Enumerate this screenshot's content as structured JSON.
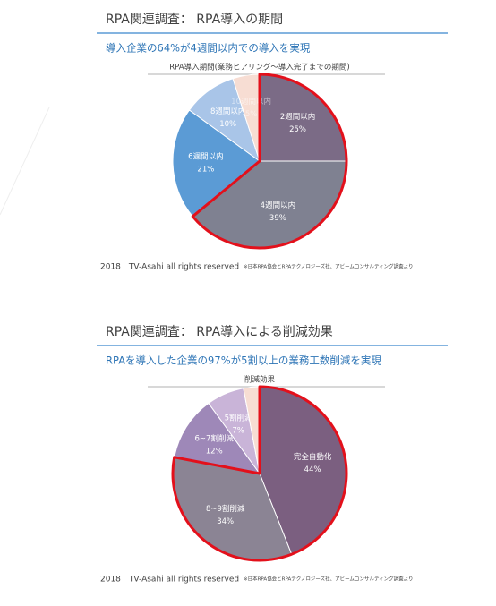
{
  "chart_data": [
    {
      "type": "pie",
      "title": "RPA関連調査： RPA導入の期間",
      "subtitle": "導入企業の64%が4週間以内での導入を実現",
      "chart_title": "RPA導入期間(業務ヒアリング～導入完了までの期間)",
      "categories": [
        "2週間以内",
        "4週間以内",
        "6週間以内",
        "8週間以内",
        "10週間以内"
      ],
      "values": [
        25,
        39,
        21,
        10,
        5
      ],
      "value_labels": [
        "25%",
        "39%",
        "21%",
        "10%",
        "5%"
      ],
      "colors": [
        "#7b6b86",
        "#7f8191",
        "#5b9bd5",
        "#a9c5e8",
        "#f7ddd3"
      ],
      "highlight_slices": [
        0,
        1
      ],
      "highlight_color": "#e3101b",
      "footer": "2018　TV-Asahi all rights reserved",
      "source": "※日本RPA協会とRPAテクノロジーズ社、アビームコンサルティング調査より"
    },
    {
      "type": "pie",
      "title": "RPA関連調査： RPA導入による削減効果",
      "subtitle": "RPAを導入した企業の97%が5割以上の業務工数削減を実現",
      "chart_title": "削減効果",
      "categories": [
        "完全自動化",
        "8~9割削減",
        "6~7割削減",
        "5割削減",
        null
      ],
      "values": [
        44,
        34,
        12,
        7,
        3
      ],
      "value_labels": [
        "44%",
        "34%",
        "12%",
        "7%",
        null
      ],
      "colors": [
        "#7b5f80",
        "#8b8494",
        "#9e88b8",
        "#c9b4d8",
        "#f7ddd3"
      ],
      "highlight_slices": [
        0,
        1
      ],
      "highlight_color": "#e3101b",
      "footer": "2018　TV-Asahi all rights reserved",
      "source": "※日本RPA協会とRPAテクノロジーズ社、アビームコンサルティング調査より"
    }
  ]
}
